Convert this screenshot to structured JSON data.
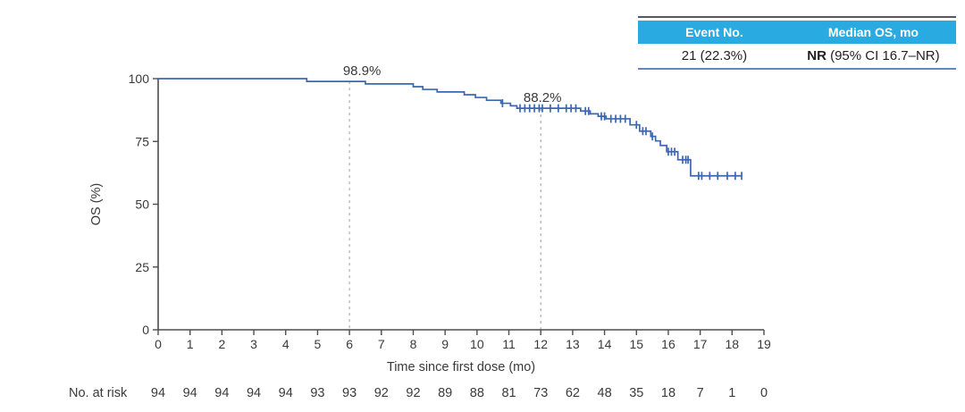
{
  "table": {
    "headers": [
      "Event No.",
      "Median OS, mo"
    ],
    "row": {
      "event_no": "21 (22.3%)",
      "median_prefix": "NR",
      "median_rest": " (95% CI 16.7–NR)"
    },
    "header_bg": "#29abe2"
  },
  "chart_data": {
    "type": "line",
    "subtype": "kaplan-meier-step-curve",
    "title": "",
    "xlabel": "Time since first dose (mo)",
    "ylabel": "OS (%)",
    "xlim": [
      0,
      19
    ],
    "ylim": [
      0,
      100
    ],
    "x_ticks": [
      0,
      1,
      2,
      3,
      4,
      5,
      6,
      7,
      8,
      9,
      10,
      11,
      12,
      13,
      14,
      15,
      16,
      17,
      18,
      19
    ],
    "y_ticks": [
      0,
      25,
      50,
      75,
      100
    ],
    "grid": false,
    "legend": "none",
    "line_color": "#3b67b2",
    "axis_color": "#4d4d4d",
    "dashed_line_color": "#ababab",
    "series": [
      {
        "name": "OS",
        "end_time": 18.3,
        "steps": [
          [
            0,
            100
          ],
          [
            4.66,
            98.9
          ],
          [
            6.5,
            97.9
          ],
          [
            8.0,
            96.8
          ],
          [
            8.3,
            95.7
          ],
          [
            8.75,
            94.7
          ],
          [
            9.6,
            93.6
          ],
          [
            9.95,
            92.5
          ],
          [
            10.3,
            91.4
          ],
          [
            10.75,
            90.2
          ],
          [
            11.05,
            89.2
          ],
          [
            11.25,
            88.2
          ],
          [
            13.25,
            87.1
          ],
          [
            13.55,
            86.0
          ],
          [
            13.8,
            85.0
          ],
          [
            14.05,
            84.0
          ],
          [
            14.8,
            81.6
          ],
          [
            15.1,
            79.1
          ],
          [
            15.45,
            77.0
          ],
          [
            15.6,
            75.2
          ],
          [
            15.75,
            73.4
          ],
          [
            15.95,
            70.9
          ],
          [
            16.3,
            67.7
          ],
          [
            16.7,
            61.3
          ]
        ],
        "censor_times": [
          10.8,
          11.35,
          11.5,
          11.65,
          11.8,
          11.95,
          12.05,
          12.3,
          12.55,
          12.8,
          12.95,
          13.1,
          13.4,
          13.5,
          13.9,
          14.0,
          14.2,
          14.35,
          14.5,
          14.65,
          15.0,
          15.2,
          15.3,
          15.5,
          16.0,
          16.1,
          16.2,
          16.45,
          16.55,
          16.62,
          16.95,
          17.05,
          17.3,
          17.55,
          17.85,
          18.1,
          18.3
        ]
      }
    ],
    "annotations": [
      {
        "time": 6,
        "survival": 98.9,
        "label": "98.9%",
        "label_dx": 14
      },
      {
        "time": 12,
        "survival": 88.2,
        "label": "88.2%",
        "label_dx": 2
      }
    ],
    "at_risk": {
      "label": "No. at risk",
      "times": [
        0,
        1,
        2,
        3,
        4,
        5,
        6,
        7,
        8,
        9,
        10,
        11,
        12,
        13,
        14,
        15,
        16,
        17,
        18,
        19
      ],
      "values": [
        94,
        94,
        94,
        94,
        94,
        93,
        93,
        92,
        92,
        89,
        88,
        81,
        73,
        62,
        48,
        35,
        18,
        7,
        1,
        0
      ]
    }
  }
}
